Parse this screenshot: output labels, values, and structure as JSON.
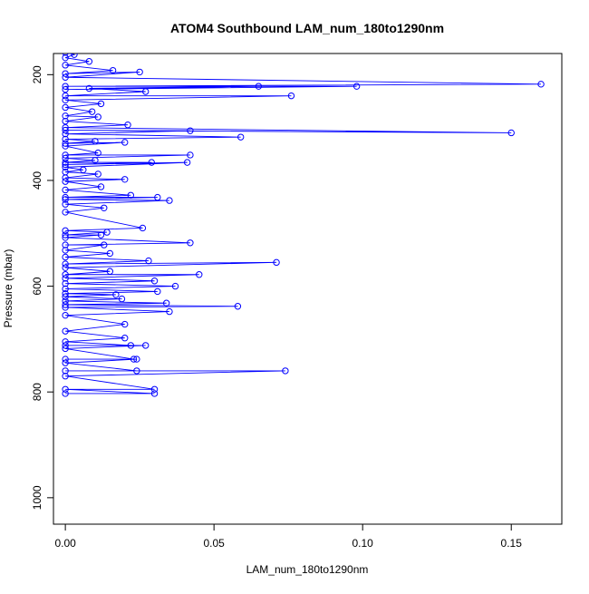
{
  "chart_data": {
    "type": "line",
    "title": "ATOM4 Southbound LAM_num_180to1290nm",
    "xlabel": "LAM_num_180to1290nm",
    "ylabel": "Pressure (mbar)",
    "xlim": [
      -0.004,
      0.167
    ],
    "ylim": [
      1050,
      160
    ],
    "y_inverted": true,
    "grid": false,
    "x_ticks": [
      {
        "value": 0.0,
        "label": "0.00"
      },
      {
        "value": 0.05,
        "label": "0.05"
      },
      {
        "value": 0.1,
        "label": "0.10"
      },
      {
        "value": 0.15,
        "label": "0.15"
      }
    ],
    "y_ticks": [
      {
        "value": 200,
        "label": "200"
      },
      {
        "value": 400,
        "label": "400"
      },
      {
        "value": 600,
        "label": "600"
      },
      {
        "value": 800,
        "label": "800"
      },
      {
        "value": 1000,
        "label": "1000"
      }
    ],
    "colors": {
      "series": "#0000ff",
      "axis": "#000000"
    },
    "series": [
      {
        "points": [
          [
            0.0,
            150
          ],
          [
            0.0,
            158
          ],
          [
            0.003,
            162
          ],
          [
            0.0,
            168
          ],
          [
            0.008,
            175
          ],
          [
            0.0,
            182
          ],
          [
            0.016,
            192
          ],
          [
            0.0,
            198
          ],
          [
            0.025,
            195
          ],
          [
            0.0,
            205
          ],
          [
            0.16,
            218
          ],
          [
            0.0,
            222
          ],
          [
            0.098,
            222
          ],
          [
            0.0,
            228
          ],
          [
            0.065,
            222
          ],
          [
            0.008,
            226
          ],
          [
            0.027,
            232
          ],
          [
            0.0,
            240
          ],
          [
            0.076,
            240
          ],
          [
            0.0,
            248
          ],
          [
            0.012,
            255
          ],
          [
            0.0,
            262
          ],
          [
            0.009,
            270
          ],
          [
            0.0,
            278
          ],
          [
            0.011,
            280
          ],
          [
            0.0,
            288
          ],
          [
            0.021,
            295
          ],
          [
            0.0,
            300
          ],
          [
            0.15,
            310
          ],
          [
            0.0,
            305
          ],
          [
            0.042,
            306
          ],
          [
            0.0,
            312
          ],
          [
            0.059,
            318
          ],
          [
            0.0,
            322
          ],
          [
            0.01,
            326
          ],
          [
            0.0,
            330
          ],
          [
            0.02,
            328
          ],
          [
            0.0,
            335
          ],
          [
            0.011,
            348
          ],
          [
            0.0,
            352
          ],
          [
            0.042,
            352
          ],
          [
            0.0,
            358
          ],
          [
            0.01,
            362
          ],
          [
            0.0,
            366
          ],
          [
            0.029,
            366
          ],
          [
            0.0,
            370
          ],
          [
            0.041,
            366
          ],
          [
            0.0,
            375
          ],
          [
            0.006,
            380
          ],
          [
            0.0,
            384
          ],
          [
            0.011,
            388
          ],
          [
            0.0,
            395
          ],
          [
            0.02,
            398
          ],
          [
            0.0,
            402
          ],
          [
            0.012,
            412
          ],
          [
            0.0,
            418
          ],
          [
            0.022,
            428
          ],
          [
            0.0,
            432
          ],
          [
            0.031,
            432
          ],
          [
            0.0,
            436
          ],
          [
            0.035,
            438
          ],
          [
            0.0,
            445
          ],
          [
            0.013,
            452
          ],
          [
            0.0,
            460
          ],
          [
            0.026,
            490
          ],
          [
            0.0,
            495
          ],
          [
            0.014,
            498
          ],
          [
            0.0,
            503
          ],
          [
            0.012,
            503
          ],
          [
            0.0,
            508
          ],
          [
            0.042,
            518
          ],
          [
            0.0,
            522
          ],
          [
            0.013,
            522
          ],
          [
            0.0,
            532
          ],
          [
            0.015,
            538
          ],
          [
            0.0,
            545
          ],
          [
            0.028,
            552
          ],
          [
            0.0,
            558
          ],
          [
            0.071,
            555
          ],
          [
            0.0,
            565
          ],
          [
            0.015,
            572
          ],
          [
            0.0,
            578
          ],
          [
            0.045,
            578
          ],
          [
            0.0,
            585
          ],
          [
            0.03,
            590
          ],
          [
            0.0,
            595
          ],
          [
            0.037,
            600
          ],
          [
            0.0,
            605
          ],
          [
            0.031,
            610
          ],
          [
            0.0,
            614
          ],
          [
            0.017,
            616
          ],
          [
            0.0,
            620
          ],
          [
            0.019,
            624
          ],
          [
            0.0,
            628
          ],
          [
            0.034,
            632
          ],
          [
            0.0,
            635
          ],
          [
            0.058,
            638
          ],
          [
            0.0,
            640
          ],
          [
            0.035,
            648
          ],
          [
            0.0,
            655
          ],
          [
            0.02,
            672
          ],
          [
            0.0,
            685
          ],
          [
            0.02,
            698
          ],
          [
            0.0,
            705
          ],
          [
            0.022,
            712
          ],
          [
            0.0,
            712
          ],
          [
            0.027,
            712
          ],
          [
            0.0,
            718
          ],
          [
            0.023,
            738
          ],
          [
            0.0,
            738
          ],
          [
            0.024,
            738
          ],
          [
            0.0,
            745
          ],
          [
            0.024,
            760
          ],
          [
            0.0,
            760
          ],
          [
            0.074,
            760
          ],
          [
            0.0,
            770
          ],
          [
            0.03,
            795
          ],
          [
            0.0,
            795
          ],
          [
            0.03,
            803
          ],
          [
            0.0,
            803
          ]
        ]
      }
    ]
  }
}
